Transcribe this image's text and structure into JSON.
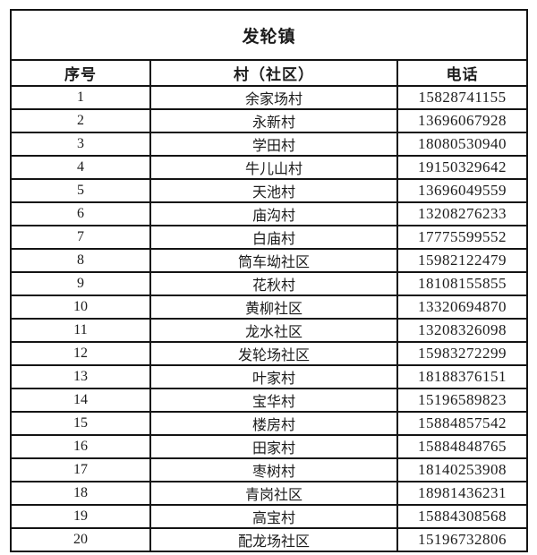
{
  "table": {
    "title": "发轮镇",
    "columns": [
      "序号",
      "村（社区）",
      "电话"
    ],
    "rows": [
      {
        "index": "1",
        "village": "余家场村",
        "phone": "15828741155"
      },
      {
        "index": "2",
        "village": "永新村",
        "phone": "13696067928"
      },
      {
        "index": "3",
        "village": "学田村",
        "phone": "18080530940"
      },
      {
        "index": "4",
        "village": "牛儿山村",
        "phone": "19150329642"
      },
      {
        "index": "5",
        "village": "天池村",
        "phone": "13696049559"
      },
      {
        "index": "6",
        "village": "庙沟村",
        "phone": "13208276233"
      },
      {
        "index": "7",
        "village": "白庙村",
        "phone": "17775599552"
      },
      {
        "index": "8",
        "village": "筒车坳社区",
        "phone": "15982122479"
      },
      {
        "index": "9",
        "village": "花秋村",
        "phone": "18108155855"
      },
      {
        "index": "10",
        "village": "黄柳社区",
        "phone": "13320694870"
      },
      {
        "index": "11",
        "village": "龙水社区",
        "phone": "13208326098"
      },
      {
        "index": "12",
        "village": "发轮场社区",
        "phone": "15983272299"
      },
      {
        "index": "13",
        "village": "叶家村",
        "phone": "18188376151"
      },
      {
        "index": "14",
        "village": "宝华村",
        "phone": "15196589823"
      },
      {
        "index": "15",
        "village": "楼房村",
        "phone": "15884857542"
      },
      {
        "index": "16",
        "village": "田家村",
        "phone": "15884848765"
      },
      {
        "index": "17",
        "village": "枣树村",
        "phone": "18140253908"
      },
      {
        "index": "18",
        "village": "青岗社区",
        "phone": "18981436231"
      },
      {
        "index": "19",
        "village": "高宝村",
        "phone": "15884308568"
      },
      {
        "index": "20",
        "village": "配龙场社区",
        "phone": "15196732806"
      }
    ]
  }
}
